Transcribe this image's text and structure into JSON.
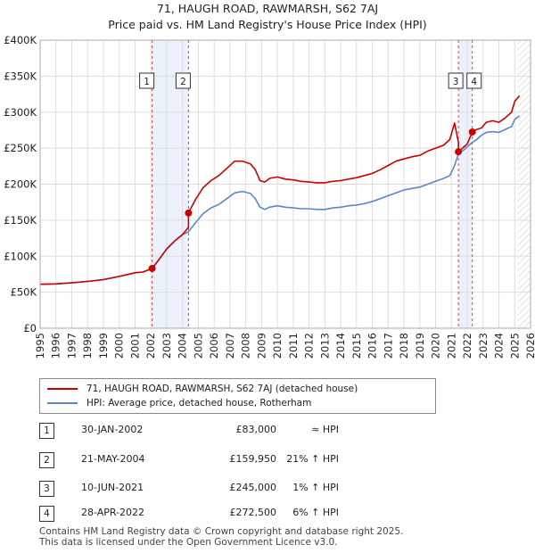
{
  "title": "71, HAUGH ROAD, RAWMARSH, S62 7AJ",
  "subtitle": "Price paid vs. HM Land Registry's House Price Index (HPI)",
  "colors": {
    "price_line": "#cc0000",
    "hpi_line": "#5b88c0",
    "marker_band": "#dde8f6",
    "grid": "#dddddd",
    "projection_band": "#eeeeee"
  },
  "chart_data": {
    "type": "line",
    "title": "71, HAUGH ROAD, RAWMARSH, S62 7AJ",
    "subtitle": "Price paid vs. HM Land Registry's House Price Index (HPI)",
    "xlabel": "",
    "ylabel": "",
    "xlim": [
      1995,
      2026
    ],
    "ylim": [
      0,
      400000
    ],
    "x_ticks": [
      1995,
      1996,
      1997,
      1998,
      1999,
      2000,
      2001,
      2002,
      2003,
      2004,
      2005,
      2006,
      2007,
      2008,
      2009,
      2010,
      2011,
      2012,
      2013,
      2014,
      2015,
      2016,
      2017,
      2018,
      2019,
      2020,
      2021,
      2022,
      2023,
      2024,
      2025,
      2026
    ],
    "y_ticks": [
      0,
      50000,
      100000,
      150000,
      200000,
      250000,
      300000,
      350000,
      400000
    ],
    "y_tick_labels": [
      "£0",
      "£50K",
      "£100K",
      "£150K",
      "£200K",
      "£250K",
      "£300K",
      "£350K",
      "£400K"
    ],
    "projection_start": 2025.2,
    "series": [
      {
        "name": "71, HAUGH ROAD, RAWMARSH, S62 7AJ (detached house)",
        "x": [
          1995.0,
          1996.0,
          1997.0,
          1998.0,
          1999.0,
          2000.0,
          2001.0,
          2001.5,
          2002.08,
          2002.5,
          2003.0,
          2003.5,
          2004.0,
          2004.38,
          2004.38,
          2004.8,
          2005.3,
          2005.8,
          2006.3,
          2006.8,
          2007.3,
          2007.8,
          2008.3,
          2008.6,
          2008.9,
          2009.2,
          2009.5,
          2010.0,
          2010.5,
          2011.0,
          2011.5,
          2012.0,
          2012.5,
          2013.0,
          2013.5,
          2014.0,
          2014.5,
          2015.0,
          2015.5,
          2016.0,
          2016.5,
          2017.0,
          2017.5,
          2018.0,
          2018.5,
          2019.0,
          2019.5,
          2020.0,
          2020.5,
          2020.9,
          2021.2,
          2021.44,
          2021.44,
          2021.6,
          2021.8,
          2022.0,
          2022.32,
          2022.6,
          2022.9,
          2023.2,
          2023.6,
          2024.0,
          2024.4,
          2024.8,
          2025.0,
          2025.3
        ],
        "values": [
          61000,
          61500,
          63000,
          65000,
          67500,
          72000,
          77000,
          78000,
          83000,
          95000,
          110000,
          121000,
          130000,
          140000,
          159950,
          178000,
          195000,
          205000,
          212000,
          222000,
          232000,
          232000,
          228000,
          220000,
          205000,
          203000,
          208000,
          210000,
          207000,
          206000,
          204000,
          203000,
          202000,
          202000,
          204000,
          205000,
          207000,
          209000,
          212000,
          215000,
          220000,
          226000,
          232000,
          235000,
          238000,
          240000,
          246000,
          250000,
          254000,
          262000,
          285000,
          258000,
          245000,
          248000,
          252000,
          256000,
          272500,
          276000,
          278000,
          286000,
          288000,
          286000,
          292000,
          300000,
          315000,
          323000
        ]
      },
      {
        "name": "HPI: Average price, detached house, Rotherham",
        "x": [
          1995.0,
          1996.0,
          1997.0,
          1998.0,
          1999.0,
          2000.0,
          2001.0,
          2001.5,
          2002.08,
          2002.5,
          2003.0,
          2003.5,
          2004.0,
          2004.38,
          2004.8,
          2005.3,
          2005.8,
          2006.3,
          2006.8,
          2007.3,
          2007.8,
          2008.3,
          2008.6,
          2008.9,
          2009.2,
          2009.5,
          2010.0,
          2010.5,
          2011.0,
          2011.5,
          2012.0,
          2012.5,
          2013.0,
          2013.5,
          2014.0,
          2014.5,
          2015.0,
          2015.5,
          2016.0,
          2016.5,
          2017.0,
          2017.5,
          2018.0,
          2018.5,
          2019.0,
          2019.5,
          2020.0,
          2020.5,
          2020.9,
          2021.2,
          2021.44,
          2021.8,
          2022.0,
          2022.32,
          2022.6,
          2022.9,
          2023.2,
          2023.6,
          2024.0,
          2024.4,
          2024.8,
          2025.0,
          2025.3
        ],
        "values": [
          61000,
          61500,
          63000,
          65000,
          67500,
          72000,
          77000,
          78000,
          83000,
          95000,
          110000,
          121000,
          130000,
          134000,
          146000,
          159000,
          167000,
          172000,
          180000,
          188000,
          190000,
          187000,
          180000,
          168000,
          165000,
          168000,
          170000,
          168000,
          167000,
          166000,
          166000,
          165000,
          165000,
          167000,
          168000,
          170000,
          171000,
          173000,
          176000,
          180000,
          184000,
          188000,
          192000,
          194000,
          196000,
          200000,
          204000,
          208000,
          212000,
          226000,
          242000,
          248000,
          252000,
          258000,
          262000,
          268000,
          272000,
          273000,
          272000,
          276000,
          280000,
          290000,
          295000
        ]
      }
    ],
    "transactions": [
      {
        "label": "1",
        "date": "30-JAN-2002",
        "price": "£83,000",
        "hpi_relation": "≈ HPI",
        "x": 2002.08,
        "value": 83000
      },
      {
        "label": "2",
        "date": "21-MAY-2004",
        "price": "£159,950",
        "hpi_relation": "21% ↑ HPI",
        "x": 2004.38,
        "value": 159950
      },
      {
        "label": "3",
        "date": "10-JUN-2021",
        "price": "£245,000",
        "hpi_relation": "1% ↑ HPI",
        "x": 2021.44,
        "value": 245000
      },
      {
        "label": "4",
        "date": "28-APR-2022",
        "price": "£272,500",
        "hpi_relation": "6% ↑ HPI",
        "x": 2022.32,
        "value": 272500
      }
    ]
  },
  "legend": {
    "price_label": "71, HAUGH ROAD, RAWMARSH, S62 7AJ (detached house)",
    "hpi_label": "HPI: Average price, detached house, Rotherham"
  },
  "footer": {
    "line1": "Contains HM Land Registry data © Crown copyright and database right 2025.",
    "line2": "This data is licensed under the Open Government Licence v3.0."
  }
}
